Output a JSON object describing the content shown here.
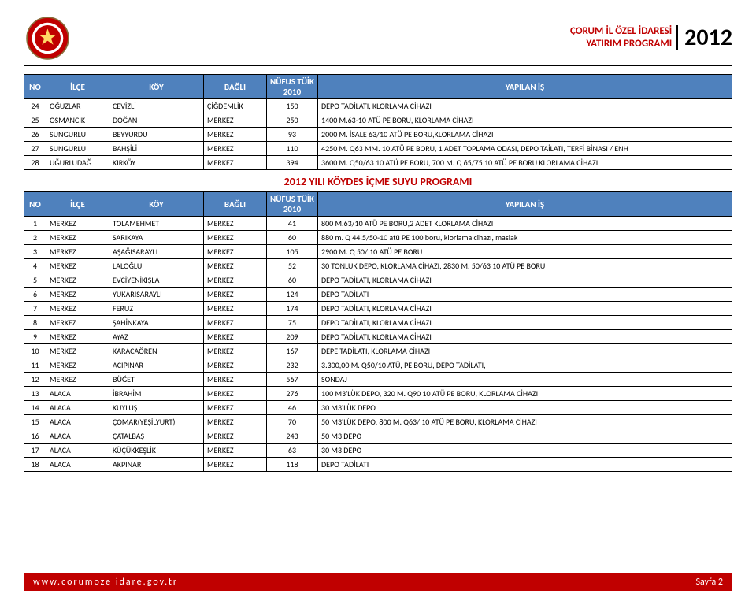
{
  "header": {
    "org_line1": "ÇORUM İL ÖZEL İDARESİ",
    "org_line2": "YATIRIM PROGRAMI",
    "year": "2012"
  },
  "table1": {
    "columns": [
      "NO",
      "İLÇE",
      "KÖY",
      "BAĞLI",
      "NÜFUS TÜİK 2010",
      "YAPILAN İŞ"
    ],
    "rows": [
      [
        "24",
        "OĞUZLAR",
        "CEVİZLİ",
        "ÇİĞDEMLİK",
        "150",
        "DEPO TADİLATI, KLORLAMA CİHAZI"
      ],
      [
        "25",
        "OSMANCIK",
        "DOĞAN",
        "MERKEZ",
        "250",
        "1400 M.63-10 ATÜ PE BORU, KLORLAMA CİHAZI"
      ],
      [
        "26",
        "SUNGURLU",
        "BEYYURDU",
        "MERKEZ",
        "93",
        "2000 M. İSALE 63/10 ATÜ PE BORU,KLORLAMA CİHAZI"
      ],
      [
        "27",
        "SUNGURLU",
        "BAHŞİLİ",
        "MERKEZ",
        "110",
        "4250 M. Q63 MM. 10 ATÜ PE BORU, 1 ADET TOPLAMA ODASI, DEPO TAİLATI, TERFİ BİNASI / ENH"
      ],
      [
        "28",
        "UĞURLUDAĞ",
        "KIRKÖY",
        "MERKEZ",
        "394",
        "3600 M. Q50/63 10 ATÜ PE BORU, 700 M. Q 65/75 10 ATÜ PE BORU KLORLAMA CİHAZI"
      ]
    ]
  },
  "section_title": "2012 YILI KÖYDES İÇME SUYU PROGRAMI",
  "table2": {
    "columns": [
      "NO",
      "İLÇE",
      "KÖY",
      "BAĞLI",
      "NÜFUS TÜİK 2010",
      "YAPILAN İŞ"
    ],
    "rows": [
      [
        "1",
        "MERKEZ",
        "TOLAMEHMET",
        "MERKEZ",
        "41",
        "800 M.63/10 ATÜ PE BORU,2 ADET KLORLAMA CİHAZI"
      ],
      [
        "2",
        "MERKEZ",
        "SARIKAYA",
        "MERKEZ",
        "60",
        "880 m. Q 44.5/50-10 atü PE 100 boru, klorlama cihazı, maslak"
      ],
      [
        "3",
        "MERKEZ",
        "AŞAĞISARAYLI",
        "MERKEZ",
        "105",
        "2900 M. Q 50/ 10 ATÜ PE BORU"
      ],
      [
        "4",
        "MERKEZ",
        "LALOĞLU",
        "MERKEZ",
        "52",
        "30 TONLUK DEPO, KLORLAMA CİHAZI, 2830 M. 50/63 10 ATÜ PE BORU"
      ],
      [
        "5",
        "MERKEZ",
        "EVCİYENİKIŞLA",
        "MERKEZ",
        "60",
        "DEPO TADİLATI, KLORLAMA CİHAZI"
      ],
      [
        "6",
        "MERKEZ",
        "YUKARISARAYLI",
        "MERKEZ",
        "124",
        "DEPO TADİLATI"
      ],
      [
        "7",
        "MERKEZ",
        "FERUZ",
        "MERKEZ",
        "174",
        "DEPO TADİLATI, KLORLAMA CİHAZI"
      ],
      [
        "8",
        "MERKEZ",
        "ŞAHİNKAYA",
        "MERKEZ",
        "75",
        "DEPO TADİLATI, KLORLAMA CİHAZI"
      ],
      [
        "9",
        "MERKEZ",
        "AYAZ",
        "MERKEZ",
        "209",
        "DEPO TADİLATI, KLORLAMA CİHAZI"
      ],
      [
        "10",
        "MERKEZ",
        "KARACAÖREN",
        "MERKEZ",
        "167",
        "DEPE TADİLATI, KLORLAMA CİHAZI"
      ],
      [
        "11",
        "MERKEZ",
        "ACIPINAR",
        "MERKEZ",
        "232",
        "3.300,00 M. Q50/10 ATÜ, PE BORU, DEPO TADİLATI,"
      ],
      [
        "12",
        "MERKEZ",
        "BÜĞET",
        "MERKEZ",
        "567",
        "SONDAJ"
      ],
      [
        "13",
        "ALACA",
        "İBRAHİM",
        "MERKEZ",
        "276",
        "100 M3'LÜK DEPO, 320 M. Q90 10 ATÜ PE BORU, KLORLAMA CİHAZI"
      ],
      [
        "14",
        "ALACA",
        "KUYLUŞ",
        "MERKEZ",
        "46",
        "30 M3'LÜK DEPO"
      ],
      [
        "15",
        "ALACA",
        "ÇOMAR(YEŞİLYURT)",
        "MERKEZ",
        "70",
        "50 M3'LÜK DEPO, 800 M. Q63/ 10 ATÜ PE BORU, KLORLAMA CİHAZI"
      ],
      [
        "16",
        "ALACA",
        "ÇATALBAŞ",
        "MERKEZ",
        "243",
        "50 M3 DEPO"
      ],
      [
        "17",
        "ALACA",
        "KÜÇÜKKEŞLİK",
        "MERKEZ",
        "63",
        "30 M3 DEPO"
      ],
      [
        "18",
        "ALACA",
        "AKPINAR",
        "MERKEZ",
        "118",
        "DEPO TADİLATI"
      ]
    ]
  },
  "footer": {
    "left": "www.corumozelidare.gov.tr",
    "right": "Sayfa 2"
  },
  "colors": {
    "header_blue": "#4f81bd",
    "accent_red": "#c00000",
    "border": "#000000"
  }
}
